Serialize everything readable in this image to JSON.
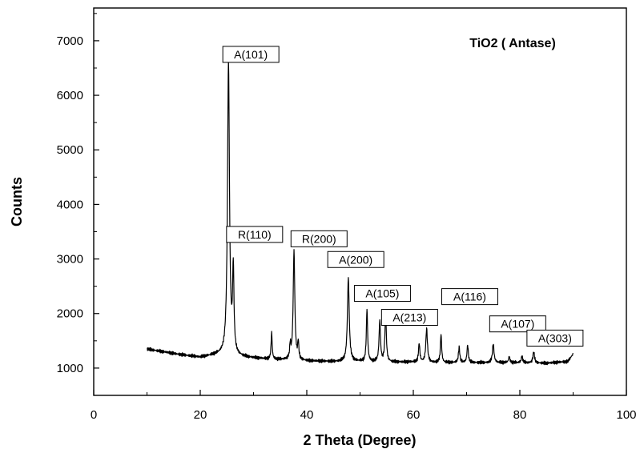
{
  "chart_data": {
    "type": "line",
    "title": "TiO2 ( Antase)",
    "xlabel": "2 Theta (Degree)",
    "ylabel": "Counts",
    "xlim": [
      0,
      100
    ],
    "ylim": [
      500,
      7600
    ],
    "x_ticks": [
      "0",
      "20",
      "40",
      "60",
      "80",
      "100"
    ],
    "y_ticks": [
      "1000",
      "2000",
      "3000",
      "4000",
      "5000",
      "6000",
      "7000"
    ],
    "grid": false,
    "legend_position": "top-right",
    "line_color": "#000000",
    "baseline": [
      [
        10,
        1350
      ],
      [
        13,
        1300
      ],
      [
        16,
        1250
      ],
      [
        20,
        1200
      ],
      [
        23,
        1240
      ],
      [
        28,
        1200
      ],
      [
        33,
        1160
      ],
      [
        36,
        1150
      ],
      [
        40,
        1130
      ],
      [
        45,
        1120
      ],
      [
        50,
        1120
      ],
      [
        55,
        1110
      ],
      [
        60,
        1110
      ],
      [
        65,
        1100
      ],
      [
        70,
        1100
      ],
      [
        75,
        1100
      ],
      [
        80,
        1100
      ],
      [
        85,
        1090
      ],
      [
        89,
        1120
      ],
      [
        90,
        1260
      ]
    ],
    "peaks": [
      {
        "x": 25.3,
        "y": 6600,
        "w": 0.22
      },
      {
        "x": 26.2,
        "y": 2750,
        "w": 0.15
      },
      {
        "x": 33.4,
        "y": 1650,
        "w": 0.12
      },
      {
        "x": 36.9,
        "y": 1400,
        "w": 0.12
      },
      {
        "x": 37.6,
        "y": 3150,
        "w": 0.18
      },
      {
        "x": 38.4,
        "y": 1450,
        "w": 0.12
      },
      {
        "x": 47.8,
        "y": 2650,
        "w": 0.2
      },
      {
        "x": 51.3,
        "y": 2080,
        "w": 0.14
      },
      {
        "x": 53.7,
        "y": 1850,
        "w": 0.16
      },
      {
        "x": 54.8,
        "y": 1980,
        "w": 0.16
      },
      {
        "x": 61.1,
        "y": 1450,
        "w": 0.15
      },
      {
        "x": 62.5,
        "y": 1720,
        "w": 0.18
      },
      {
        "x": 65.2,
        "y": 1620,
        "w": 0.14
      },
      {
        "x": 68.6,
        "y": 1380,
        "w": 0.15
      },
      {
        "x": 70.2,
        "y": 1420,
        "w": 0.15
      },
      {
        "x": 75.0,
        "y": 1440,
        "w": 0.18
      },
      {
        "x": 78.0,
        "y": 1210,
        "w": 0.15
      },
      {
        "x": 80.4,
        "y": 1220,
        "w": 0.15
      },
      {
        "x": 82.6,
        "y": 1300,
        "w": 0.18
      }
    ],
    "annotations": [
      {
        "text": "A(101)",
        "x": 29.5,
        "y": 6750
      },
      {
        "text": "R(110)",
        "x": 30.2,
        "y": 3450
      },
      {
        "text": "R(200)",
        "x": 42.3,
        "y": 3370
      },
      {
        "text": "A(200)",
        "x": 49.2,
        "y": 2990
      },
      {
        "text": "A(105)",
        "x": 54.2,
        "y": 2370
      },
      {
        "text": "A(213)",
        "x": 59.3,
        "y": 1930
      },
      {
        "text": "A(116)",
        "x": 70.6,
        "y": 2310
      },
      {
        "text": "A(107)",
        "x": 79.6,
        "y": 1810
      },
      {
        "text": "A(303)",
        "x": 86.6,
        "y": 1550
      }
    ]
  }
}
